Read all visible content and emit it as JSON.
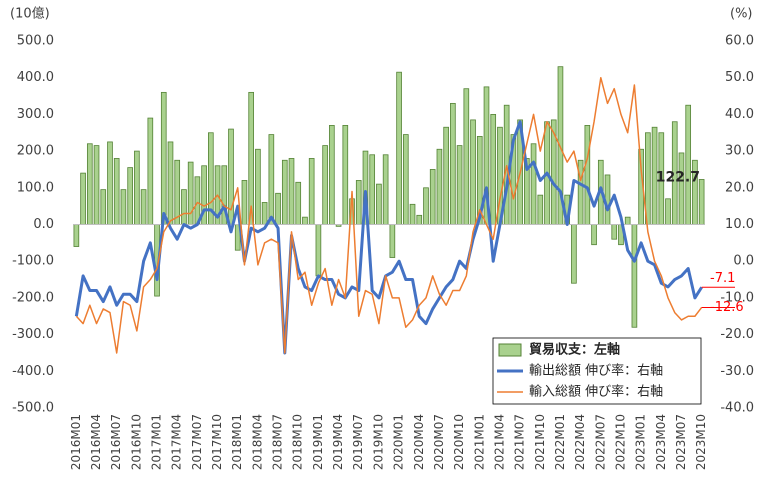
{
  "chart_data": {
    "type": "combo",
    "y_unit_label": "(10億)",
    "y2_unit_label": "(%)",
    "categories": [
      "2016M01",
      null,
      null,
      "2016M04",
      null,
      null,
      "2016M07",
      null,
      null,
      "2016M10",
      null,
      null,
      "2017M01",
      null,
      null,
      "2017M04",
      null,
      null,
      "2017M07",
      null,
      null,
      "2017M10",
      null,
      null,
      "2018M01",
      null,
      null,
      "2018M04",
      null,
      null,
      "2018M07",
      null,
      null,
      "2018M10",
      null,
      null,
      "2019M01",
      null,
      null,
      "2019M04",
      null,
      null,
      "2019M07",
      null,
      null,
      "2019M10",
      null,
      null,
      "2020M01",
      null,
      null,
      "2020M04",
      null,
      null,
      "2020M07",
      null,
      null,
      "2020M10",
      null,
      null,
      "2021M01",
      null,
      null,
      "2021M04",
      null,
      null,
      "2021M07",
      null,
      null,
      "2021M10",
      null,
      null,
      "2022M01",
      null,
      null,
      "2022M04",
      null,
      null,
      "2022M07",
      null,
      null,
      "2022M10",
      null,
      null,
      "2023M01",
      null,
      null,
      "2023M04",
      null,
      null,
      "2023M07",
      null,
      null,
      "2023M10"
    ],
    "series": [
      {
        "name": "貿易収支：左軸",
        "type": "bar",
        "axis": "y",
        "color": "#a9d18e",
        "stroke": "#548235",
        "values": [
          -60,
          140,
          220,
          215,
          95,
          225,
          180,
          95,
          155,
          200,
          95,
          290,
          -195,
          360,
          225,
          175,
          95,
          170,
          130,
          160,
          250,
          160,
          160,
          260,
          -70,
          120,
          360,
          205,
          60,
          245,
          85,
          175,
          180,
          115,
          20,
          180,
          -140,
          215,
          270,
          -5,
          270,
          70,
          120,
          200,
          190,
          110,
          190,
          -90,
          415,
          245,
          55,
          25,
          100,
          150,
          205,
          265,
          330,
          215,
          370,
          285,
          240,
          375,
          300,
          265,
          325,
          245,
          285,
          180,
          220,
          80,
          280,
          285,
          430,
          80,
          -160,
          175,
          270,
          -55,
          175,
          135,
          -40,
          -55,
          20,
          -280,
          205,
          250,
          265,
          250,
          70,
          280,
          195,
          325,
          175,
          122.7
        ],
        "label_index": 93,
        "label_color": "#262626"
      },
      {
        "name": "輸出総額 伸び率：右軸",
        "type": "line",
        "axis": "y2",
        "color": "#4472c4",
        "width": 3,
        "values": [
          -15,
          -4,
          -8,
          -8,
          -11,
          -7,
          -12,
          -9,
          -9,
          -11,
          0,
          5,
          -5,
          13,
          9,
          6,
          10,
          9,
          10,
          14,
          14,
          12,
          15,
          8,
          15,
          0,
          9,
          8,
          9,
          12,
          9,
          -25,
          7,
          -2,
          -7,
          -8,
          -4,
          -5,
          -5,
          -9,
          -10,
          -7,
          -8,
          19,
          -8,
          -10,
          -4,
          -3,
          0,
          -5,
          -5,
          -15,
          -17,
          -13,
          -10,
          -7,
          -5,
          0,
          -2,
          6,
          12,
          20,
          0,
          10,
          20,
          33,
          38,
          25,
          27,
          22,
          24,
          21,
          19,
          10,
          22,
          21,
          20,
          15,
          20,
          14,
          18,
          12,
          3,
          0,
          5,
          0,
          -1,
          -6,
          -7,
          -5,
          -4,
          -2,
          -10,
          -7.1
        ],
        "label_index": 93,
        "label_color": "#ff0000"
      },
      {
        "name": "輸入総額 伸び率：右軸",
        "type": "line",
        "axis": "y2",
        "color": "#ed7d31",
        "width": 1.5,
        "values": [
          -15,
          -17,
          -12,
          -17,
          -13,
          -14,
          -25,
          -11,
          -12,
          -19,
          -7,
          -5,
          -2,
          8,
          11,
          12,
          13,
          13,
          16,
          15,
          16,
          18,
          15,
          14,
          20,
          -1,
          15,
          -1,
          5,
          6,
          5,
          -25,
          8,
          -5,
          -3,
          -12,
          -6,
          -2,
          -12,
          -5,
          -10,
          19,
          -15,
          -8,
          -9,
          -17,
          -4,
          -10,
          -10,
          -18,
          -16,
          -12,
          -10,
          -4,
          -9,
          -12,
          -8,
          -8,
          -4,
          8,
          14,
          10,
          6,
          17,
          26,
          17,
          24,
          32,
          40,
          30,
          38,
          35,
          31,
          27,
          30,
          22,
          28,
          38,
          50,
          43,
          47,
          40,
          35,
          48,
          25,
          8,
          0,
          -4,
          -10,
          -14,
          -16,
          -15,
          -15,
          -12.6
        ],
        "label_index": 93,
        "label_color": "#ff0000"
      }
    ],
    "ylim": [
      -500,
      500
    ],
    "yticks": [
      {
        "value": -500,
        "label": "-500.0"
      },
      {
        "value": -400,
        "label": "-400.0"
      },
      {
        "value": -300,
        "label": "-300.0"
      },
      {
        "value": -200,
        "label": "-200.0"
      },
      {
        "value": -100,
        "label": "-100.0"
      },
      {
        "value": 0,
        "label": "0.0"
      },
      {
        "value": 100,
        "label": "100.0"
      },
      {
        "value": 200,
        "label": "200.0"
      },
      {
        "value": 300,
        "label": "300.0"
      },
      {
        "value": 400,
        "label": "400.0"
      },
      {
        "value": 500,
        "label": "500.0"
      }
    ],
    "y2lim": [
      -40,
      60
    ],
    "y2ticks": [
      {
        "value": -40,
        "label": "-40.0"
      },
      {
        "value": -30,
        "label": "-30.0"
      },
      {
        "value": -20,
        "label": "-20.0"
      },
      {
        "value": -10,
        "label": "-10.0"
      },
      {
        "value": 0,
        "label": "0.0"
      },
      {
        "value": 10,
        "label": "10.0"
      },
      {
        "value": 20,
        "label": "20.0"
      },
      {
        "value": 30,
        "label": "30.0"
      },
      {
        "value": 40,
        "label": "40.0"
      },
      {
        "value": 50,
        "label": "50.0"
      },
      {
        "value": 60,
        "label": "60.0"
      }
    ],
    "grid": false,
    "legend": "lower right"
  }
}
